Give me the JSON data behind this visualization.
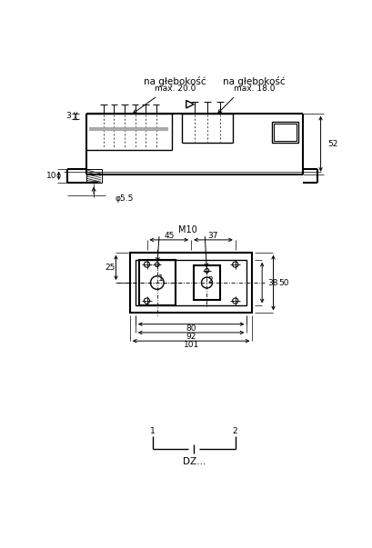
{
  "bg_color": "#ffffff",
  "line_color": "#000000",
  "annotations": {
    "na_glebokos_1": "na głębokość",
    "na_glebokos_2": "na głębokość",
    "max_200": "max. 20.0",
    "max_180": "max. 18.0",
    "dim_3": "3",
    "dim_52": "52",
    "dim_10": "10",
    "dim_phi55": "φ5.5",
    "dim_45": "45",
    "dim_37": "37",
    "dim_M10": "M10",
    "dim_25": "25",
    "dim_38": "38",
    "dim_50": "50",
    "dim_80": "80",
    "dim_92": "92",
    "dim_101": "101",
    "label_1": "1",
    "label_2": "2",
    "dz": "DZ..."
  }
}
